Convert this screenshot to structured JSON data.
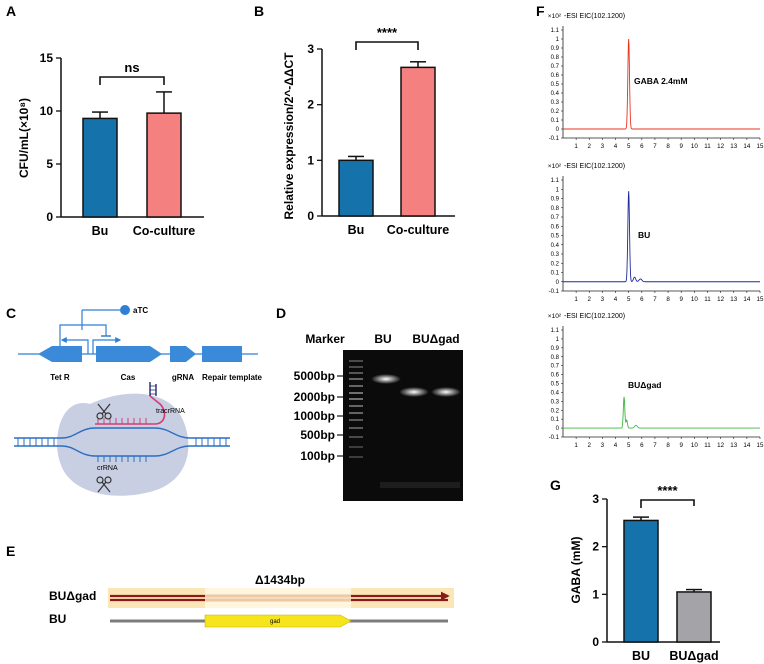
{
  "panels": {
    "A": {
      "letter": "A",
      "chart_type": "bar",
      "ylabel": "CFU/mL(×10⁸)",
      "ylim": [
        0,
        15
      ],
      "yticks": [
        "0",
        "5",
        "10",
        "15"
      ],
      "categories": [
        "Bu",
        "Co-culture"
      ],
      "values": [
        9.3,
        9.8
      ],
      "errors": [
        0.6,
        2.0
      ],
      "colors": [
        "#1572aa",
        "#f58080"
      ],
      "significance": "ns"
    },
    "B": {
      "letter": "B",
      "chart_type": "bar",
      "ylabel": "Relative expression/2^-ΔΔCT",
      "ylim": [
        0,
        3
      ],
      "yticks": [
        "0",
        "1",
        "2",
        "3"
      ],
      "categories": [
        "Bu",
        "Co-culture"
      ],
      "values": [
        1.0,
        2.67
      ],
      "errors": [
        0.07,
        0.1
      ],
      "colors": [
        "#1572aa",
        "#f58080"
      ],
      "significance": "****"
    },
    "C": {
      "letter": "C",
      "inducer": "aTC",
      "genes": [
        "Tet R",
        "Cas",
        "gRNA",
        "Repair template"
      ],
      "rna_labels": [
        "tracrRNA",
        "crRNA"
      ]
    },
    "D": {
      "letter": "D",
      "lanes": [
        "Marker",
        "BU",
        "BUΔgad"
      ],
      "ladder": [
        "5000bp",
        "2000bp",
        "1000bp",
        "500bp",
        "100bp"
      ]
    },
    "E": {
      "letter": "E",
      "deletion": "Δ1434bp",
      "rows": [
        "BUΔgad",
        "BU"
      ],
      "gene": "gad"
    },
    "F": {
      "letter": "F",
      "scale": "×10²",
      "title": "-ESI EIC(102.1200)",
      "yticks": [
        "-0.1",
        "0",
        "0.1",
        "0.2",
        "0.3",
        "0.4",
        "0.5",
        "0.6",
        "0.7",
        "0.8",
        "0.9",
        "1",
        "1.1"
      ],
      "xticks": [
        "1",
        "2",
        "3",
        "4",
        "5",
        "6",
        "7",
        "8",
        "9",
        "10",
        "11",
        "12",
        "13",
        "14",
        "15"
      ],
      "traces": [
        {
          "label": "GABA  2.4mM",
          "color": "#e8331d"
        },
        {
          "label": "BU",
          "color": "#1f2a9c"
        },
        {
          "label": "BUΔgad",
          "color": "#3fb73f"
        }
      ]
    },
    "G": {
      "letter": "G",
      "chart_type": "bar",
      "ylabel": "GABA (mM)",
      "ylim": [
        0,
        3
      ],
      "yticks": [
        "0",
        "1",
        "2",
        "3"
      ],
      "categories": [
        "BU",
        "BUΔgad"
      ],
      "values": [
        2.55,
        1.05
      ],
      "errors": [
        0.07,
        0.05
      ],
      "colors": [
        "#1572aa",
        "#a3a3a8"
      ],
      "significance": "****"
    }
  },
  "chart_data": [
    {
      "panel": "A",
      "type": "bar",
      "title": "",
      "xlabel": "",
      "ylabel": "CFU/mL(×10⁸)",
      "categories": [
        "Bu",
        "Co-culture"
      ],
      "values": [
        9.3,
        9.8
      ],
      "errors": [
        0.6,
        2.0
      ],
      "ylim": [
        0,
        15
      ]
    },
    {
      "panel": "B",
      "type": "bar",
      "title": "",
      "xlabel": "",
      "ylabel": "Relative expression/2^-ΔΔCT",
      "categories": [
        "Bu",
        "Co-culture"
      ],
      "values": [
        1.0,
        2.67
      ],
      "errors": [
        0.07,
        0.1
      ],
      "ylim": [
        0,
        3
      ]
    },
    {
      "panel": "F",
      "type": "line",
      "title": "-ESI EIC(102.1200)",
      "xlabel": "",
      "ylabel": "×10²",
      "xlim": [
        0,
        15
      ],
      "ylim": [
        -0.1,
        1.1
      ],
      "series": [
        {
          "name": "GABA 2.4mM",
          "peak_x": 5.0,
          "peak_y": 1.0
        },
        {
          "name": "BU",
          "peak_x": 5.0,
          "peak_y": 0.98
        },
        {
          "name": "BUΔgad",
          "peak_x": 4.65,
          "peak_y": 0.35
        }
      ]
    },
    {
      "panel": "G",
      "type": "bar",
      "title": "",
      "xlabel": "",
      "ylabel": "GABA (mM)",
      "categories": [
        "BU",
        "BUΔgad"
      ],
      "values": [
        2.55,
        1.05
      ],
      "errors": [
        0.07,
        0.05
      ],
      "ylim": [
        0,
        3
      ]
    }
  ]
}
